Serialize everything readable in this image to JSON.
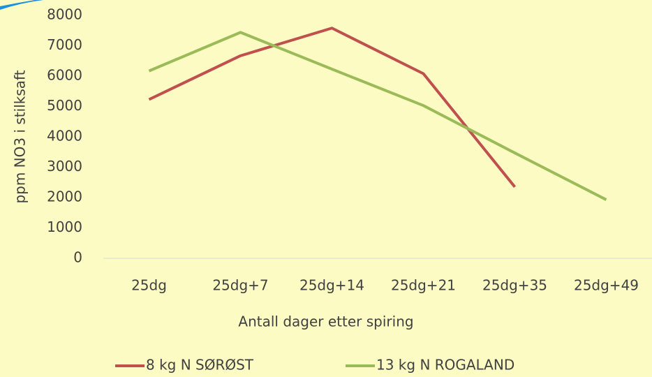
{
  "chart_data": {
    "type": "line",
    "categories": [
      "25dg",
      "25dg+7",
      "25dg+14",
      "25dg+21",
      "25dg+35",
      "25dg+49"
    ],
    "series": [
      {
        "name": "8 kg N SØRØST",
        "color": "#c0504d",
        "values": [
          5230,
          6670,
          7580,
          6080,
          2350,
          null
        ]
      },
      {
        "name": "13 kg N ROGALAND",
        "color": "#9bbb59",
        "values": [
          6170,
          7440,
          6230,
          5030,
          3470,
          1930
        ]
      }
    ],
    "ylim": [
      0,
      8000
    ],
    "yticks": [
      0,
      1000,
      2000,
      3000,
      4000,
      5000,
      6000,
      7000,
      8000
    ],
    "y_label": "ppm NO3 i stilksaft",
    "x_label": "Antall dager etter spiring",
    "grid": false,
    "legend": "bottom"
  }
}
